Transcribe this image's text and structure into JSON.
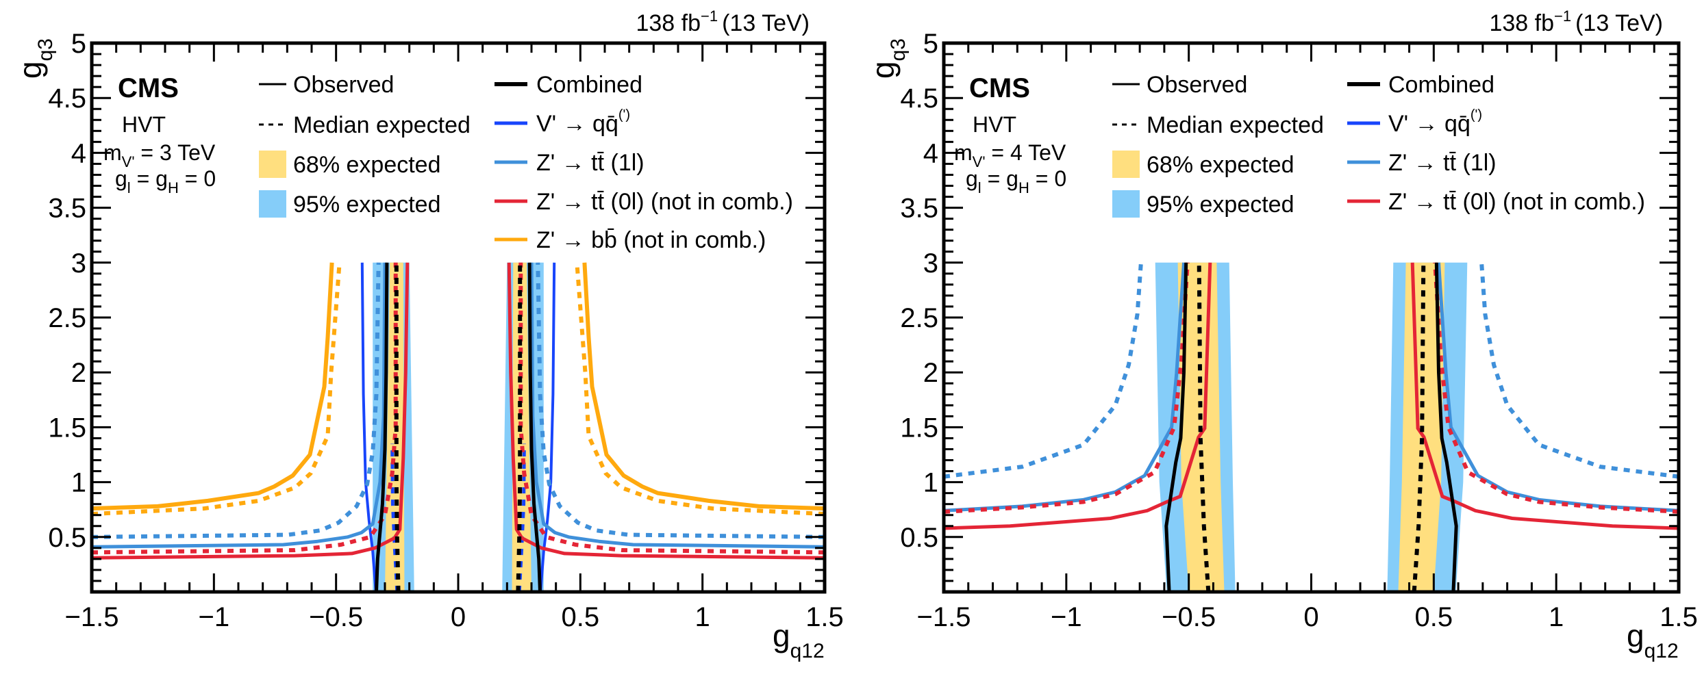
{
  "chart_data": [
    {
      "type": "line",
      "panel": "left",
      "lumi_label": "138 fb",
      "lumi_exponent": "−1",
      "energy_label": "(13 TeV)",
      "experiment": "CMS",
      "model_lines": [
        "HVT",
        "m",
        "V'",
        " = 3 TeV",
        "g",
        "l",
        " = g",
        "H",
        " = 0"
      ],
      "model": {
        "name": "HVT",
        "mass_text": " = 3 TeV",
        "mass_sub": "V'",
        "coupling_text": "g_l = g_H = 0"
      },
      "xlabel": "g",
      "xlabel_sub": "q12",
      "ylabel": "g",
      "ylabel_sub": "q3",
      "xlim": [
        -1.5,
        1.5
      ],
      "ylim": [
        0,
        5
      ],
      "x_ticks": [
        "−1.5",
        "−1",
        "−0.5",
        "0",
        "0.5",
        "1",
        "1.5"
      ],
      "x_tick_values": [
        -1.5,
        -1,
        -0.5,
        0,
        0.5,
        1,
        1.5
      ],
      "y_ticks": [
        "0.5",
        "1",
        "1.5",
        "2",
        "2.5",
        "3",
        "3.5",
        "4",
        "4.5",
        "5"
      ],
      "y_tick_values": [
        0.5,
        1,
        1.5,
        2,
        2.5,
        3,
        3.5,
        4,
        4.5,
        5
      ],
      "legend_col1": [
        {
          "label": "Observed",
          "style": "solid"
        },
        {
          "label": "Median expected",
          "style": "dashed"
        },
        {
          "label": "68% expected",
          "style": "band68"
        },
        {
          "label": "95% expected",
          "style": "band95"
        }
      ],
      "legend_col2": [
        {
          "label": "Combined",
          "color": "#000000"
        },
        {
          "label": "V' → qq̄",
          "sup": "(')",
          "color": "#1845FB"
        },
        {
          "label": "Z' → tt̄ (1l)",
          "color": "#3F90DA"
        },
        {
          "label": "Z' → tt̄ (0l) (not in comb.)",
          "color": "#E42536"
        },
        {
          "label": "Z' → bb̄ (not in comb.)",
          "color": "#FFA90E"
        }
      ],
      "bands": {
        "band95": {
          "color": "#85CDF9",
          "left_edge": [
            [
              -0.35,
              0
            ],
            [
              -0.35,
              3
            ]
          ],
          "right_edge": [
            [
              -0.18,
              0
            ],
            [
              -0.2,
              3
            ]
          ]
        },
        "band68": {
          "color": "#FFDF7F",
          "left_edge": [
            [
              -0.3,
              0
            ],
            [
              -0.28,
              3
            ]
          ],
          "right_edge": [
            [
              -0.22,
              0
            ],
            [
              -0.225,
              3
            ]
          ]
        }
      },
      "series": [
        {
          "name": "Combined observed",
          "color": "#000000",
          "dash": false,
          "width": 5,
          "points": [
            [
              -0.335,
              0
            ],
            [
              -0.33,
              0.3
            ],
            [
              -0.322,
              0.5
            ],
            [
              -0.31,
              0.8
            ],
            [
              -0.3,
              1.3
            ],
            [
              -0.295,
              2
            ],
            [
              -0.292,
              3
            ]
          ]
        },
        {
          "name": "Combined expected",
          "color": "#000000",
          "dash": true,
          "width": 6,
          "points": [
            [
              -0.245,
              0
            ],
            [
              -0.25,
              0.5
            ],
            [
              -0.253,
              1
            ],
            [
              -0.253,
              3
            ]
          ]
        },
        {
          "name": "V' → qq observed",
          "color": "#1845FB",
          "dash": false,
          "width": 4,
          "points": [
            [
              -0.337,
              0
            ],
            [
              -0.35,
              0.37
            ],
            [
              -0.365,
              0.65
            ],
            [
              -0.379,
              1.0
            ],
            [
              -0.388,
              1.8
            ],
            [
              -0.393,
              3
            ]
          ]
        },
        {
          "name": "V' → qq expected",
          "color": "#1845FB",
          "dash": true,
          "width": 5,
          "points": [
            [
              -0.25,
              0
            ],
            [
              -0.26,
              0.4
            ],
            [
              -0.268,
              0.8
            ],
            [
              -0.27,
              1.3
            ],
            [
              -0.27,
              1.35
            ]
          ]
        },
        {
          "name": "Z' → tt (1l) observed",
          "color": "#3F90DA",
          "dash": false,
          "width": 5,
          "points": [
            [
              -1.5,
              0.41
            ],
            [
              -0.716,
              0.43
            ],
            [
              -0.576,
              0.46
            ],
            [
              -0.452,
              0.5
            ],
            [
              -0.396,
              0.54
            ],
            [
              -0.35,
              0.62
            ],
            [
              -0.32,
              1.0
            ],
            [
              -0.305,
              1.6
            ],
            [
              -0.3,
              3
            ]
          ]
        },
        {
          "name": "Z' → tt (1l) expected",
          "color": "#3F90DA",
          "dash": true,
          "width": 6,
          "points": [
            [
              -1.5,
              0.5
            ],
            [
              -0.697,
              0.52
            ],
            [
              -0.565,
              0.56
            ],
            [
              -0.49,
              0.63
            ],
            [
              -0.416,
              0.78
            ],
            [
              -0.373,
              0.98
            ],
            [
              -0.35,
              1.27
            ],
            [
              -0.335,
              1.8
            ],
            [
              -0.326,
              3
            ]
          ]
        },
        {
          "name": "Z' → tt (0l) observed",
          "color": "#E42536",
          "dash": false,
          "width": 5,
          "points": [
            [
              -1.5,
              0.31
            ],
            [
              -0.668,
              0.33
            ],
            [
              -0.435,
              0.35
            ],
            [
              -0.34,
              0.4
            ],
            [
              -0.261,
              0.49
            ],
            [
              -0.239,
              0.57
            ],
            [
              -0.225,
              1.22
            ],
            [
              -0.215,
              2
            ],
            [
              -0.208,
              3
            ]
          ]
        },
        {
          "name": "Z' → tt (0l) expected",
          "color": "#E42536",
          "dash": true,
          "width": 6,
          "points": [
            [
              -1.5,
              0.36
            ],
            [
              -0.668,
              0.38
            ],
            [
              -0.48,
              0.43
            ],
            [
              -0.36,
              0.5
            ],
            [
              -0.3,
              0.7
            ],
            [
              -0.27,
              1.08
            ],
            [
              -0.256,
              1.5
            ],
            [
              -0.256,
              3
            ]
          ]
        },
        {
          "name": "Z' → bb observed",
          "color": "#FFA90E",
          "dash": false,
          "width": 6,
          "points": [
            [
              -1.5,
              0.76
            ],
            [
              -1.23,
              0.78
            ],
            [
              -1.025,
              0.83
            ],
            [
              -0.817,
              0.9
            ],
            [
              -0.753,
              0.96
            ],
            [
              -0.677,
              1.06
            ],
            [
              -0.607,
              1.25
            ],
            [
              -0.548,
              1.87
            ],
            [
              -0.534,
              2.32
            ],
            [
              -0.517,
              3
            ]
          ]
        },
        {
          "name": "Z' → bb expected",
          "color": "#FFA90E",
          "dash": true,
          "width": 6,
          "points": [
            [
              -1.5,
              0.71
            ],
            [
              -1.04,
              0.76
            ],
            [
              -0.817,
              0.83
            ],
            [
              -0.668,
              0.95
            ],
            [
              -0.604,
              1.08
            ],
            [
              -0.534,
              1.42
            ],
            [
              -0.52,
              2.0
            ],
            [
              -0.486,
              3
            ]
          ]
        }
      ],
      "symmetric_about_zero": true
    },
    {
      "type": "line",
      "panel": "right",
      "lumi_label": "138 fb",
      "lumi_exponent": "−1",
      "energy_label": "(13 TeV)",
      "experiment": "CMS",
      "model": {
        "name": "HVT",
        "mass_text": " = 4 TeV",
        "mass_sub": "V'",
        "coupling_text": "g_l = g_H = 0"
      },
      "xlabel": "g",
      "xlabel_sub": "q12",
      "ylabel": "g",
      "ylabel_sub": "q3",
      "xlim": [
        -1.5,
        1.5
      ],
      "ylim": [
        0,
        5
      ],
      "x_ticks": [
        "−1.5",
        "−1",
        "−0.5",
        "0",
        "0.5",
        "1",
        "1.5"
      ],
      "x_tick_values": [
        -1.5,
        -1,
        -0.5,
        0,
        0.5,
        1,
        1.5
      ],
      "y_ticks": [
        "0.5",
        "1",
        "1.5",
        "2",
        "2.5",
        "3",
        "3.5",
        "4",
        "4.5",
        "5"
      ],
      "y_tick_values": [
        0.5,
        1,
        1.5,
        2,
        2.5,
        3,
        3.5,
        4,
        4.5,
        5
      ],
      "legend_col1": [
        {
          "label": "Observed",
          "style": "solid"
        },
        {
          "label": "Median expected",
          "style": "dashed"
        },
        {
          "label": "68% expected",
          "style": "band68"
        },
        {
          "label": "95% expected",
          "style": "band95"
        }
      ],
      "legend_col2": [
        {
          "label": "Combined",
          "color": "#000000"
        },
        {
          "label": "V' → qq̄",
          "sup": "(')",
          "color": "#1845FB"
        },
        {
          "label": "Z' → tt̄ (1l)",
          "color": "#3F90DA"
        },
        {
          "label": "Z' → tt̄ (0l) (not in comb.)",
          "color": "#E42536"
        }
      ],
      "bands": {
        "band95": {
          "color": "#85CDF9",
          "left_edge": [
            [
              -0.59,
              0
            ],
            [
              -0.62,
              1.0
            ],
            [
              -0.637,
              3
            ]
          ],
          "right_edge": [
            [
              -0.31,
              0
            ],
            [
              -0.32,
              1.0
            ],
            [
              -0.335,
              3
            ]
          ]
        },
        "band68": {
          "color": "#FFDF7F",
          "left_edge": [
            [
              -0.5,
              0
            ],
            [
              -0.53,
              1.0
            ],
            [
              -0.545,
              3
            ]
          ],
          "right_edge": [
            [
              -0.355,
              0
            ],
            [
              -0.37,
              1.0
            ],
            [
              -0.386,
              3
            ]
          ]
        }
      },
      "series": [
        {
          "name": "Combined observed",
          "color": "#000000",
          "dash": false,
          "width": 5,
          "points": [
            [
              -0.58,
              0
            ],
            [
              -0.592,
              0.6
            ],
            [
              -0.553,
              1.18
            ],
            [
              -0.533,
              1.4
            ],
            [
              -0.52,
              2.0
            ],
            [
              -0.511,
              3
            ]
          ]
        },
        {
          "name": "Combined expected",
          "color": "#000000",
          "dash": true,
          "width": 6,
          "points": [
            [
              -0.42,
              0
            ],
            [
              -0.438,
              0.6
            ],
            [
              -0.452,
              1.4
            ],
            [
              -0.458,
              3
            ]
          ]
        },
        {
          "name": "V' → qq expected",
          "color": "#1845FB",
          "dash": true,
          "width": 4,
          "points": [
            [
              -0.42,
              0
            ],
            [
              -0.438,
              0.6
            ],
            [
              -0.452,
              1.4
            ],
            [
              -0.458,
              3
            ]
          ]
        },
        {
          "name": "Z' → tt (1l) observed",
          "color": "#3F90DA",
          "dash": false,
          "width": 5,
          "points": [
            [
              -1.5,
              0.74
            ],
            [
              -1.18,
              0.78
            ],
            [
              -0.93,
              0.84
            ],
            [
              -0.8,
              0.91
            ],
            [
              -0.68,
              1.06
            ],
            [
              -0.57,
              1.5
            ],
            [
              -0.55,
              1.99
            ],
            [
              -0.52,
              3
            ]
          ]
        },
        {
          "name": "Z' → tt (1l) expected",
          "color": "#3F90DA",
          "dash": true,
          "width": 6,
          "points": [
            [
              -1.5,
              1.05
            ],
            [
              -1.18,
              1.14
            ],
            [
              -0.93,
              1.34
            ],
            [
              -0.8,
              1.7
            ],
            [
              -0.745,
              2.07
            ],
            [
              -0.71,
              2.53
            ],
            [
              -0.695,
              3
            ]
          ]
        },
        {
          "name": "Z' → tt (0l) observed",
          "color": "#E42536",
          "dash": false,
          "width": 5,
          "points": [
            [
              -1.5,
              0.58
            ],
            [
              -1.23,
              0.6
            ],
            [
              -0.82,
              0.67
            ],
            [
              -0.67,
              0.74
            ],
            [
              -0.58,
              0.83
            ],
            [
              -0.535,
              0.87
            ],
            [
              -0.46,
              1.41
            ],
            [
              -0.435,
              1.49
            ],
            [
              -0.413,
              3
            ]
          ]
        },
        {
          "name": "Z' → tt (0l) expected",
          "color": "#E42536",
          "dash": true,
          "width": 6,
          "points": [
            [
              -1.5,
              0.73
            ],
            [
              -1.18,
              0.77
            ],
            [
              -0.93,
              0.82
            ],
            [
              -0.8,
              0.89
            ],
            [
              -0.64,
              1.09
            ],
            [
              -0.56,
              1.5
            ],
            [
              -0.53,
              2.1
            ],
            [
              -0.505,
              3
            ]
          ]
        }
      ],
      "symmetric_about_zero": true
    }
  ]
}
